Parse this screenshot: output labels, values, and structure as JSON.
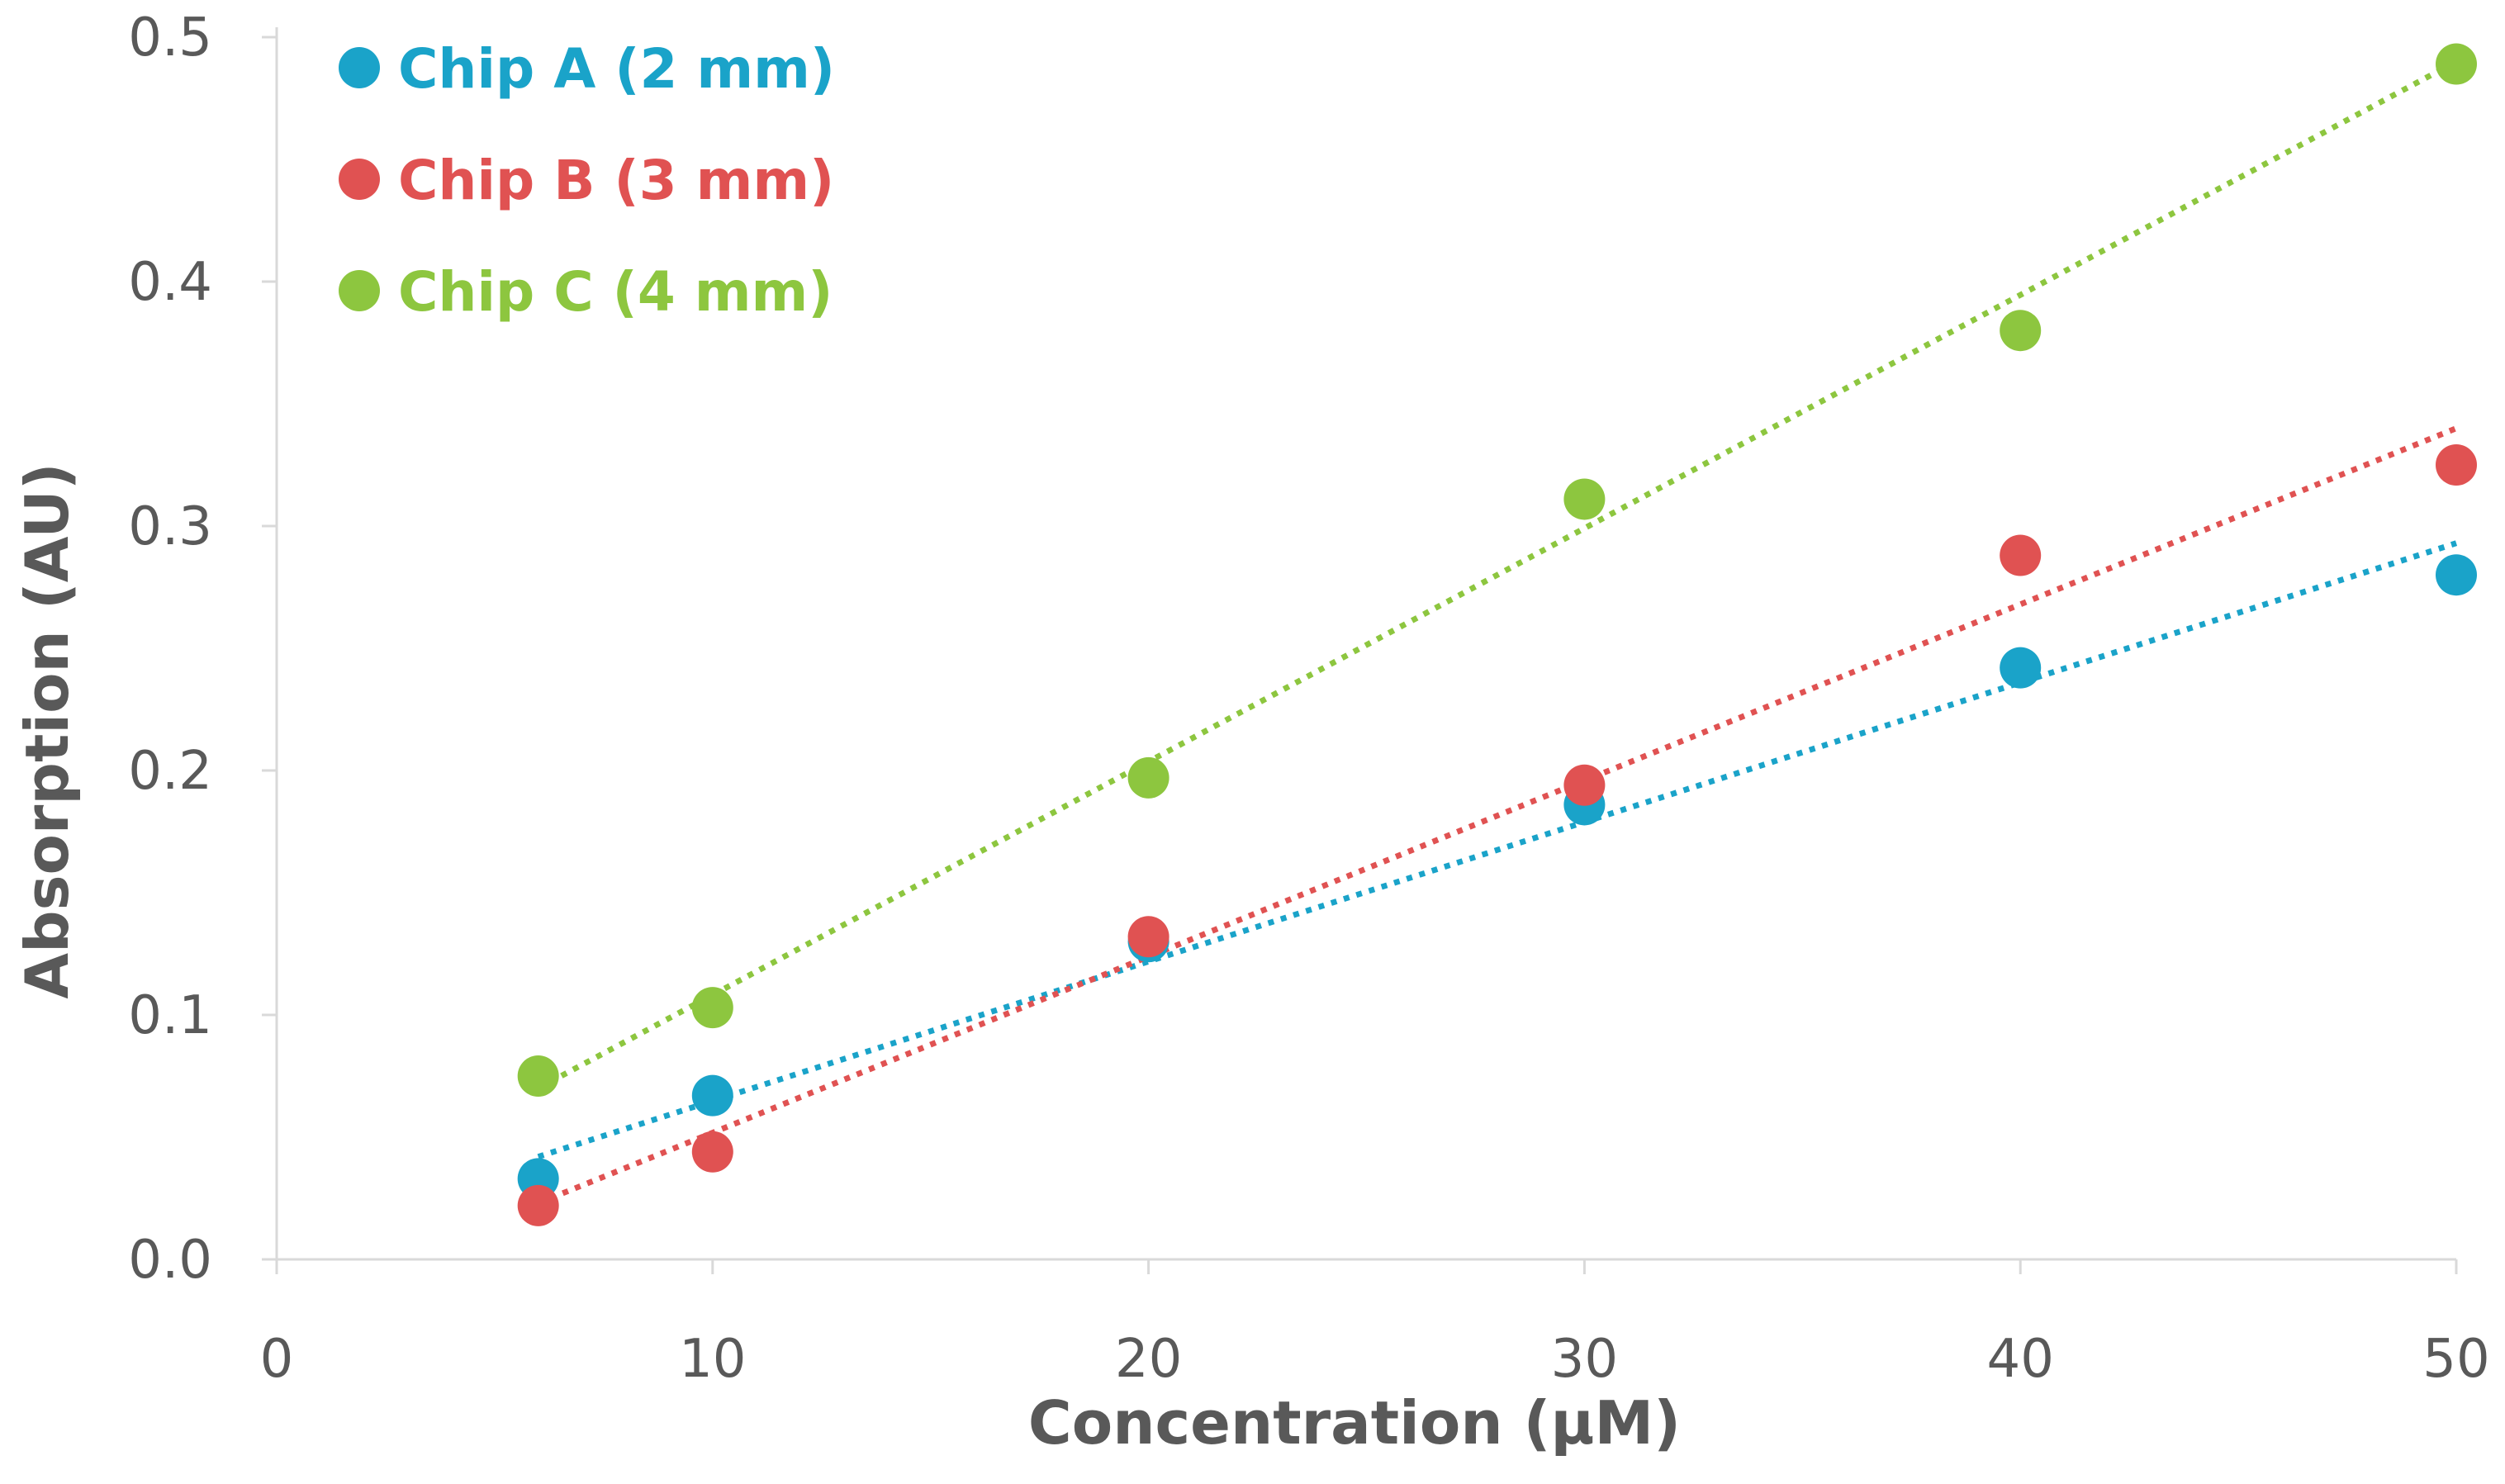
{
  "chart_data": {
    "type": "scatter",
    "title": "",
    "xlabel": "Concentration (µM)",
    "ylabel": "Absorption (AU)",
    "xlim": [
      0,
      50
    ],
    "ylim": [
      0,
      0.5
    ],
    "xticks": [
      0,
      10,
      20,
      30,
      40,
      50
    ],
    "xtick_labels": [
      "0",
      "10",
      "20",
      "30",
      "40",
      "50"
    ],
    "yticks": [
      0,
      0.1,
      0.2,
      0.3,
      0.4,
      0.5
    ],
    "ytick_labels": [
      "0.0",
      "0.1",
      "0.2",
      "0.3",
      "0.4",
      "0.5"
    ],
    "grid": false,
    "legend_position": "top-left",
    "series": [
      {
        "name": "Chip A (2 mm)",
        "color": "#1aa3c9",
        "x": [
          6,
          10,
          20,
          30,
          40,
          50
        ],
        "y": [
          0.033,
          0.067,
          0.13,
          0.186,
          0.242,
          0.28
        ],
        "trendline": {
          "type": "linear",
          "x": [
            6,
            50
          ],
          "y": [
            0.042,
            0.293
          ]
        }
      },
      {
        "name": "Chip B (3 mm)",
        "color": "#e05252",
        "x": [
          6,
          10,
          20,
          30,
          40,
          50
        ],
        "y": [
          0.022,
          0.044,
          0.132,
          0.194,
          0.288,
          0.325
        ],
        "trendline": {
          "type": "linear",
          "x": [
            6,
            50
          ],
          "y": [
            0.023,
            0.34
          ]
        }
      },
      {
        "name": "Chip C (4 mm)",
        "color": "#8dc63f",
        "x": [
          6,
          10,
          20,
          30,
          40,
          50
        ],
        "y": [
          0.075,
          0.103,
          0.197,
          0.311,
          0.38,
          0.489
        ],
        "trendline": {
          "type": "linear",
          "x": [
            6,
            50
          ],
          "y": [
            0.07,
            0.49
          ]
        }
      }
    ]
  }
}
